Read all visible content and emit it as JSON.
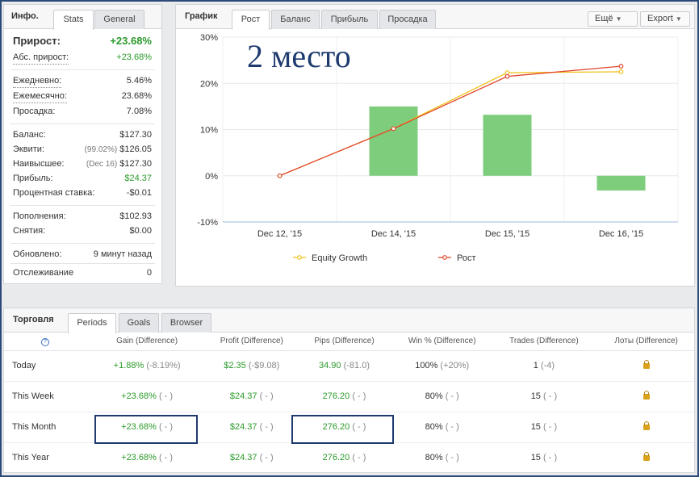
{
  "info": {
    "title": "Инфо.",
    "tabs": [
      "Stats",
      "General"
    ],
    "gain": {
      "label": "Прирост:",
      "value": "+23.68%"
    },
    "abs_gain": {
      "label": "Абс. прирост:",
      "value": "+23.68%"
    },
    "daily": {
      "label": "Ежедневно:",
      "value": "5.46%"
    },
    "monthly": {
      "label": "Ежемесячно:",
      "value": "23.68%"
    },
    "drawdown": {
      "label": "Просадка:",
      "value": "7.08%"
    },
    "balance": {
      "label": "Баланс:",
      "value": "$127.30"
    },
    "equity": {
      "label": "Эквити:",
      "note": "(99.02%)",
      "value": "$126.05"
    },
    "highest": {
      "label": "Наивысшее:",
      "note": "(Dec 16)",
      "value": "$127.30"
    },
    "profit": {
      "label": "Прибыль:",
      "value": "$24.37"
    },
    "interest": {
      "label": "Процентная ставка:",
      "value": "-$0.01"
    },
    "deposits": {
      "label": "Пополнения:",
      "value": "$102.93"
    },
    "withdrawals": {
      "label": "Снятия:",
      "value": "$0.00"
    },
    "updated": {
      "label": "Обновлено:",
      "value": "9 минут назад"
    },
    "tracking": {
      "label": "Отслеживание",
      "value": "0"
    }
  },
  "chart_panel": {
    "title": "График",
    "tabs": [
      "Рост",
      "Баланс",
      "Прибыль",
      "Просадка"
    ],
    "more_label": "Ещё",
    "export_label": "Export",
    "overlay_text": "2 место"
  },
  "chart_data": {
    "type": "bar",
    "categories": [
      "Dec 12, '15",
      "Dec 14, '15",
      "Dec 15, '15",
      "Dec 16, '15"
    ],
    "yticks": [
      "30%",
      "20%",
      "10%",
      "0%",
      "-10%"
    ],
    "ylim": [
      -10,
      30
    ],
    "bars": [
      null,
      15,
      13.2,
      -3.2
    ],
    "series": [
      {
        "name": "Equity Growth",
        "color": "#f2c21b",
        "values": [
          0,
          10.2,
          22.3,
          22.5
        ]
      },
      {
        "name": "Рост",
        "color": "#e0472d",
        "values": [
          0,
          10.2,
          21.5,
          23.7
        ]
      }
    ],
    "bar_color": "#7dcd7d",
    "legend_position": "bottom"
  },
  "trading": {
    "title": "Торговля",
    "tabs": [
      "Periods",
      "Goals",
      "Browser"
    ],
    "help_glyph": "?",
    "columns": [
      "Gain (Difference)",
      "Profit (Difference)",
      "Pips (Difference)",
      "Win % (Difference)",
      "Trades (Difference)",
      "Лоты (Difference)"
    ],
    "rows": [
      {
        "period": "Today",
        "gain": "+1.88%",
        "gain_diff": "(-8.19%)",
        "profit": "$2.35",
        "profit_diff": "(-$9.08)",
        "pips": "34.90",
        "pips_diff": "(-81.0)",
        "win": "100%",
        "win_diff": "(+20%)",
        "trades": "1",
        "trades_diff": "(-4)"
      },
      {
        "period": "This Week",
        "gain": "+23.68%",
        "gain_diff": "( - )",
        "profit": "$24.37",
        "profit_diff": "( - )",
        "pips": "276.20",
        "pips_diff": "( - )",
        "win": "80%",
        "win_diff": "( - )",
        "trades": "15",
        "trades_diff": "( - )"
      },
      {
        "period": "This Month",
        "gain": "+23.68%",
        "gain_diff": "( - )",
        "profit": "$24.37",
        "profit_diff": "( - )",
        "pips": "276.20",
        "pips_diff": "( - )",
        "win": "80%",
        "win_diff": "( - )",
        "trades": "15",
        "trades_diff": "( - )"
      },
      {
        "period": "This Year",
        "gain": "+23.68%",
        "gain_diff": "( - )",
        "profit": "$24.37",
        "profit_diff": "( - )",
        "pips": "276.20",
        "pips_diff": "( - )",
        "win": "80%",
        "win_diff": "( - )",
        "trades": "15",
        "trades_diff": "( - )"
      }
    ]
  }
}
